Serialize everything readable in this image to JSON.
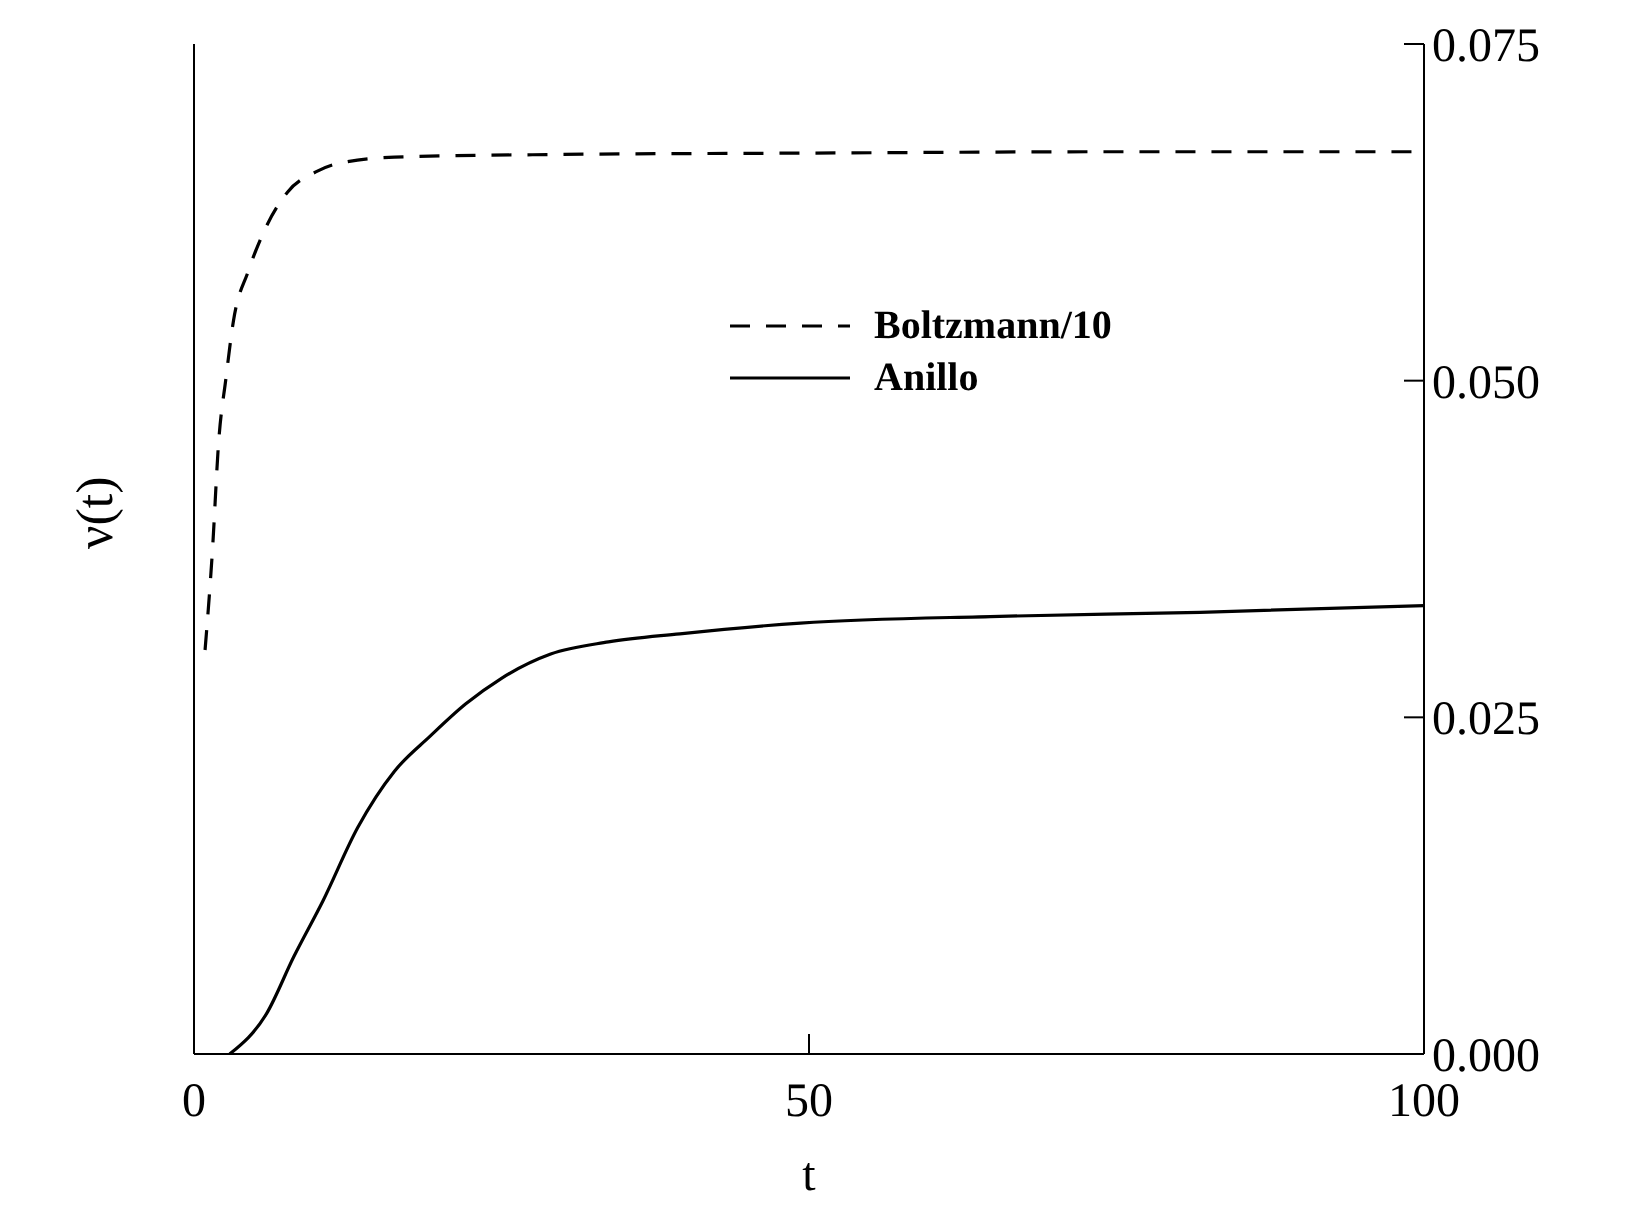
{
  "chart_data": {
    "type": "line",
    "xlabel": "t",
    "ylabel": "ν(t)",
    "xlim": [
      0,
      100
    ],
    "xticks": [
      0,
      50,
      100
    ],
    "ylim": [
      0,
      0.075
    ],
    "yticks": [
      {
        "value": 0,
        "label": "0.000"
      },
      {
        "value": 0.025,
        "label": "0.025"
      },
      {
        "value": 0.05,
        "label": "0.050"
      },
      {
        "value": 0.075,
        "label": "0.075"
      }
    ],
    "legend": "top right",
    "marker": "none",
    "series": [
      {
        "name": "Boltzmann/10",
        "color": "#000000",
        "line_style": "dashed",
        "x": [
          0.9,
          1.5,
          2.0,
          2.6,
          3.2,
          4.4,
          5.5,
          7.6,
          9.9,
          11.6,
          16.3,
          30,
          50,
          75,
          100
        ],
        "values": [
          0.03,
          0.0374,
          0.0454,
          0.0502,
          0.0544,
          0.0581,
          0.0607,
          0.064,
          0.0655,
          0.0661,
          0.0666,
          0.0668,
          0.0669,
          0.067,
          0.067
        ]
      },
      {
        "name": "Anillo",
        "color": "#000000",
        "line_style": "solid",
        "x": [
          2.9,
          5.9,
          8.1,
          10.5,
          13.3,
          16.3,
          19.2,
          22.1,
          25,
          29,
          33.7,
          39.5,
          49.3,
          65.5,
          81.8,
          100
        ],
        "values": [
          0,
          0.003,
          0.0072,
          0.0114,
          0.0168,
          0.021,
          0.0236,
          0.026,
          0.0279,
          0.0297,
          0.0306,
          0.0312,
          0.032,
          0.0325,
          0.0328,
          0.0333
        ]
      }
    ]
  }
}
